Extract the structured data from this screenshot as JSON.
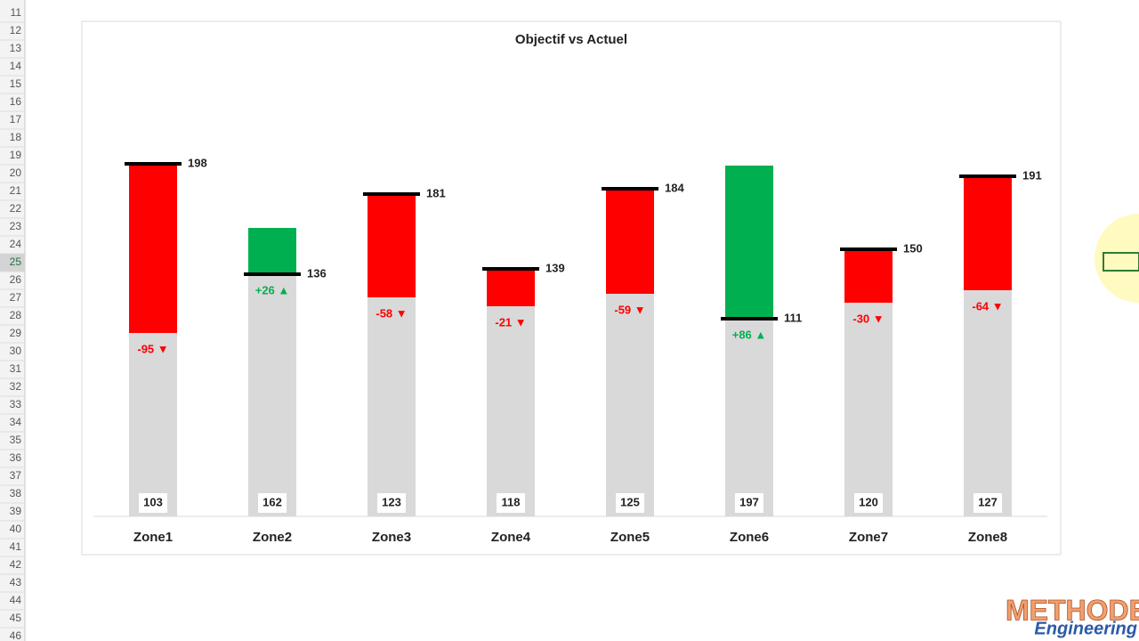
{
  "row_headers": [
    11,
    12,
    13,
    14,
    15,
    16,
    17,
    18,
    19,
    20,
    21,
    22,
    23,
    24,
    25,
    26,
    27,
    28,
    29,
    30,
    31,
    32,
    33,
    34,
    35,
    36,
    37,
    38,
    39,
    40,
    41,
    42,
    43,
    44,
    45,
    46
  ],
  "chart_data": {
    "type": "target-variance",
    "title": "Objectif vs Actuel",
    "categories": [
      "Zone1",
      "Zone2",
      "Zone3",
      "Zone4",
      "Zone5",
      "Zone6",
      "Zone7",
      "Zone8"
    ],
    "actual": {
      "values": [
        103,
        162,
        123,
        118,
        125,
        197,
        120,
        127
      ],
      "color": "#d9d9d9"
    },
    "target": {
      "values": [
        198,
        136,
        181,
        139,
        184,
        111,
        150,
        191
      ],
      "color": "#000000"
    },
    "variance": {
      "values": [
        -95,
        26,
        -58,
        -21,
        -59,
        86,
        -30,
        -64
      ],
      "value_labels": [
        "-95 ▼",
        "+26 ▲",
        "-58 ▼",
        "-21 ▼",
        "-59 ▼",
        "+86 ▲",
        "-30 ▼",
        "-64 ▼"
      ],
      "negative_color": "#ff0000",
      "positive_color": "#00b050"
    },
    "ylim": [
      0,
      250
    ]
  },
  "logo": {
    "line1": "METHODES",
    "line2": "Engineering"
  }
}
